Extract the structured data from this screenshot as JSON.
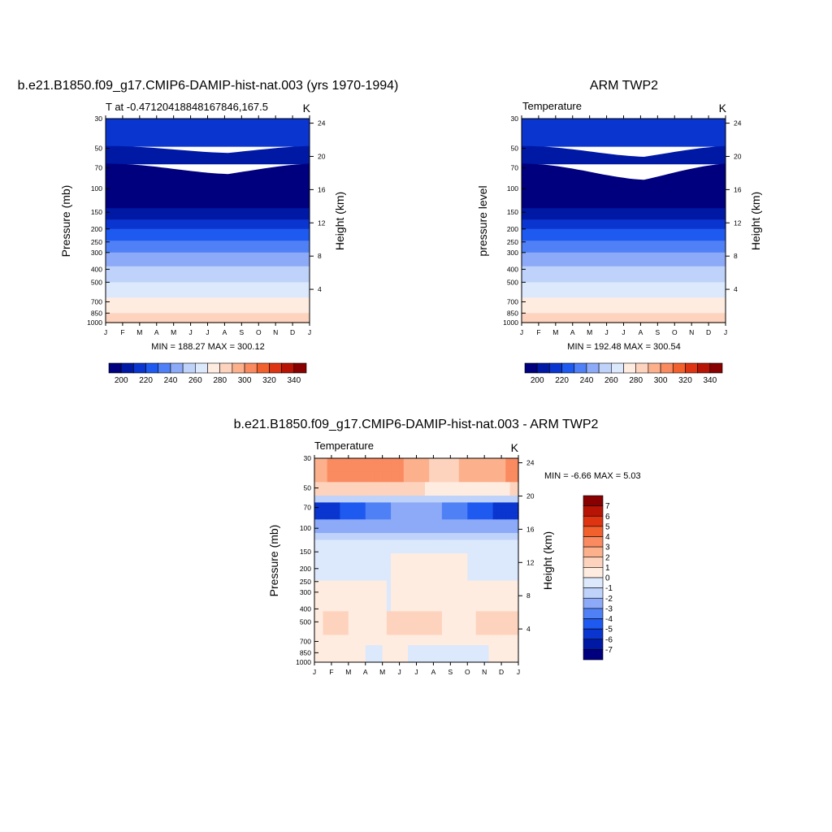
{
  "chart_data": [
    {
      "type": "heatmap",
      "title": "b.e21.B1850.f09_g17.CMIP6-DAMIP-hist-nat.003 (yrs 1970-1994)",
      "subtitle_left": "T at -0.47120418848167846,167.5",
      "subtitle_right": "K",
      "ylabel": "Pressure (mb)",
      "ylabel_right": "Height (km)",
      "x_tick_labels": [
        "J",
        "F",
        "M",
        "A",
        "M",
        "J",
        "J",
        "A",
        "S",
        "O",
        "N",
        "D",
        "J"
      ],
      "y_tick_labels": [
        "30",
        "50",
        "70",
        "100",
        "150",
        "200",
        "250",
        "300",
        "400",
        "500",
        "700",
        "850",
        "1000"
      ],
      "height_tick_labels": [
        "24",
        "20",
        "16",
        "12",
        "8",
        "4"
      ],
      "stats": "MIN = 188.27 MAX = 300.12",
      "colorbar": {
        "orientation": "horizontal",
        "labels": [
          "200",
          "220",
          "240",
          "260",
          "280",
          "300",
          "320",
          "340"
        ],
        "colors": [
          "#00007f",
          "#0019a5",
          "#0a35cf",
          "#1e5af0",
          "#5080f5",
          "#8caaf7",
          "#bed2fa",
          "#dce8fc",
          "#ffece0",
          "#fdd3be",
          "#fcb08c",
          "#fa8a5f",
          "#f2602e",
          "#de3412",
          "#b71405",
          "#880000"
        ]
      },
      "bands": [
        {
          "from": 30,
          "to": 150,
          "color": "#0a35cf"
        },
        {
          "from": 150,
          "to": 200,
          "color": "#0a35cf"
        },
        {
          "from": 200,
          "to": 250,
          "color": "#1e5af0"
        },
        {
          "from": 250,
          "to": 300,
          "color": "#5080f5"
        },
        {
          "from": 300,
          "to": 400,
          "color": "#8caaf7"
        },
        {
          "from": 400,
          "to": 500,
          "color": "#bed2fa"
        },
        {
          "from": 500,
          "to": 600,
          "color": "#dce8fc"
        },
        {
          "from": 600,
          "to": 800,
          "color": "#ffece0"
        },
        {
          "from": 800,
          "to": 900,
          "color": "#fdd3be"
        },
        {
          "from": 900,
          "to": 1000,
          "color": "#fcb08c"
        }
      ]
    },
    {
      "type": "heatmap",
      "title": "ARM TWP2",
      "subtitle_left": "Temperature",
      "subtitle_right": "K",
      "ylabel": "pressure level",
      "ylabel_right": "Height (km)",
      "x_tick_labels": [
        "J",
        "F",
        "M",
        "A",
        "M",
        "J",
        "J",
        "A",
        "S",
        "O",
        "N",
        "D",
        "J"
      ],
      "y_tick_labels": [
        "30",
        "50",
        "70",
        "100",
        "150",
        "200",
        "250",
        "300",
        "400",
        "500",
        "700",
        "850",
        "1000"
      ],
      "height_tick_labels": [
        "24",
        "20",
        "16",
        "12",
        "8",
        "4"
      ],
      "stats": "MIN = 192.48 MAX = 300.54",
      "colorbar": {
        "orientation": "horizontal",
        "labels": [
          "200",
          "220",
          "240",
          "260",
          "280",
          "300",
          "320",
          "340"
        ],
        "colors": [
          "#00007f",
          "#0019a5",
          "#0a35cf",
          "#1e5af0",
          "#5080f5",
          "#8caaf7",
          "#bed2fa",
          "#dce8fc",
          "#ffece0",
          "#fdd3be",
          "#fcb08c",
          "#fa8a5f",
          "#f2602e",
          "#de3412",
          "#b71405",
          "#880000"
        ]
      }
    },
    {
      "type": "heatmap",
      "title": "b.e21.B1850.f09_g17.CMIP6-DAMIP-hist-nat.003 - ARM TWP2",
      "subtitle_left": "Temperature",
      "subtitle_right": "K",
      "ylabel": "Pressure (mb)",
      "ylabel_right": "Height (km)",
      "x_tick_labels": [
        "J",
        "F",
        "M",
        "A",
        "M",
        "J",
        "J",
        "A",
        "S",
        "O",
        "N",
        "D",
        "J"
      ],
      "y_tick_labels": [
        "30",
        "50",
        "70",
        "100",
        "150",
        "200",
        "250",
        "300",
        "400",
        "500",
        "700",
        "850",
        "1000"
      ],
      "height_tick_labels": [
        "24",
        "20",
        "16",
        "12",
        "8",
        "4"
      ],
      "stats": "MIN =  -6.66 MAX =   5.03",
      "colorbar": {
        "orientation": "vertical",
        "labels": [
          "7",
          "6",
          "5",
          "4",
          "3",
          "2",
          "1",
          "0",
          "-1",
          "-2",
          "-3",
          "-4",
          "-5",
          "-6",
          "-7"
        ],
        "colors": [
          "#880000",
          "#b71405",
          "#de3412",
          "#f2602e",
          "#fa8a5f",
          "#fcb08c",
          "#fdd3be",
          "#ffece0",
          "#dce8fc",
          "#bed2fa",
          "#8caaf7",
          "#5080f5",
          "#1e5af0",
          "#0a35cf",
          "#0019a5",
          "#00007f"
        ]
      },
      "diff_min": -6.66,
      "diff_max": 5.03
    }
  ]
}
